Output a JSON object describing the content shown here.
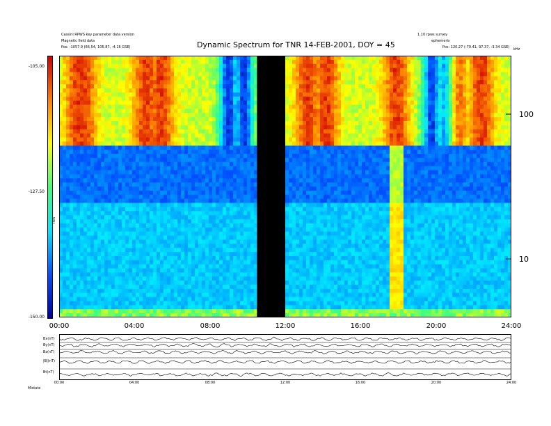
{
  "chart_data": [
    {
      "type": "heatmap",
      "title": "Dynamic Spectrum for TNR 14-FEB-2001, DOY = 45",
      "x_ticks": [
        "00:00",
        "04:00",
        "08:00",
        "12:00",
        "16:00",
        "20:00",
        "24:00"
      ],
      "xlim_hours": [
        0,
        24
      ],
      "y_scale": "log",
      "y_ticks": [
        "100",
        "10"
      ],
      "y_unit": "kHz",
      "colorbar": {
        "label": "TNR",
        "ticks": [
          "-105.00",
          "-127.50",
          "-150.00"
        ],
        "range": [
          -150.0,
          -105.0
        ],
        "colormap": [
          "#0000a0",
          "#0050ff",
          "#00e8ff",
          "#40ff80",
          "#ffff00",
          "#ff8000",
          "#d00000"
        ]
      },
      "data_gap_hours": [
        10.5,
        12.0
      ],
      "band_boundary_khz": 62,
      "header_left": [
        "Cassini RPWS key parameter data version",
        "Magnetic field data",
        "Pos: -1057.9 (66.54, 105.87, -4.16 GSE)"
      ],
      "header_right": [
        "1.10 rpws survey",
        "ephemeris",
        "Pos: 120.27 (-79.41, 97.37, -3.34 GSE)"
      ]
    },
    {
      "type": "line",
      "panel": "magnetometer",
      "series": [
        {
          "name": "Bx(nT)"
        },
        {
          "name": "By(nT)"
        },
        {
          "name": "Bz(nT)"
        },
        {
          "name": "|B|(nT)"
        },
        {
          "name": "Bt(nT)"
        }
      ],
      "x_ticks": [
        "00:00",
        "04:00",
        "08:00",
        "12:00",
        "16:00",
        "20:00",
        "24:00"
      ],
      "footer_label": "Mistate"
    }
  ]
}
